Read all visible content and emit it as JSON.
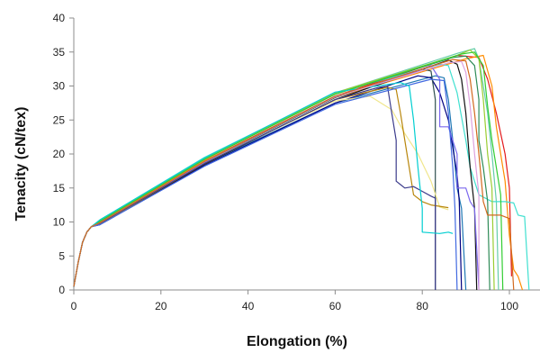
{
  "chart_data": {
    "type": "line",
    "title": "",
    "xlabel": "Elongation (%)",
    "ylabel": "Tenacity (cN/tex)",
    "xlim": [
      0,
      110
    ],
    "ylim": [
      0,
      40
    ],
    "xticks": [
      0,
      20,
      40,
      60,
      80,
      100
    ],
    "yticks": [
      0,
      5,
      10,
      15,
      20,
      25,
      30,
      35,
      40
    ],
    "grid": false,
    "legend": "none",
    "series": [
      {
        "color": "#e31a1c",
        "points": [
          [
            0,
            0.5
          ],
          [
            1,
            4
          ],
          [
            2,
            7
          ],
          [
            3,
            8.5
          ],
          [
            4,
            9.3
          ],
          [
            6,
            10
          ],
          [
            30,
            19
          ],
          [
            60,
            28.5
          ],
          [
            88,
            34.5
          ],
          [
            93,
            34.2
          ],
          [
            95,
            31
          ],
          [
            97,
            26
          ],
          [
            99,
            20
          ],
          [
            100,
            15
          ],
          [
            100.5,
            2
          ]
        ]
      },
      {
        "color": "#ff8c00",
        "points": [
          [
            0,
            0.5
          ],
          [
            1,
            4
          ],
          [
            2,
            7
          ],
          [
            3,
            8.5
          ],
          [
            4,
            9.3
          ],
          [
            6,
            10
          ],
          [
            30,
            19
          ],
          [
            60,
            28.3
          ],
          [
            90,
            34
          ],
          [
            94,
            34.5
          ],
          [
            96,
            30
          ],
          [
            97,
            24
          ],
          [
            98,
            20
          ],
          [
            99,
            16
          ],
          [
            100,
            8
          ],
          [
            101,
            3
          ],
          [
            102,
            2
          ],
          [
            103,
            0
          ]
        ]
      },
      {
        "color": "#66cdaa",
        "points": [
          [
            0,
            0.5
          ],
          [
            1,
            4
          ],
          [
            2,
            7
          ],
          [
            3,
            8.5
          ],
          [
            4,
            9.3
          ],
          [
            6,
            10.2
          ],
          [
            30,
            19.3
          ],
          [
            60,
            29
          ],
          [
            88,
            34.8
          ],
          [
            92,
            35.5
          ],
          [
            93,
            34
          ],
          [
            94,
            30
          ],
          [
            95,
            26
          ],
          [
            96,
            20
          ],
          [
            97,
            13
          ],
          [
            97.5,
            0
          ]
        ]
      },
      {
        "color": "#40e0d0",
        "points": [
          [
            0,
            0.5
          ],
          [
            1,
            4
          ],
          [
            2,
            7
          ],
          [
            3,
            8.5
          ],
          [
            4,
            9.3
          ],
          [
            6,
            10.3
          ],
          [
            30,
            19.5
          ],
          [
            60,
            29
          ],
          [
            84,
            33.2
          ],
          [
            86,
            33
          ],
          [
            88,
            29
          ],
          [
            90,
            22
          ],
          [
            91,
            18
          ],
          [
            93,
            14
          ],
          [
            96,
            13
          ],
          [
            99,
            13
          ],
          [
            101,
            12.8
          ],
          [
            102,
            11
          ],
          [
            103.5,
            10.8
          ],
          [
            104.5,
            0
          ]
        ]
      },
      {
        "color": "#1f78b4",
        "points": [
          [
            0,
            0.5
          ],
          [
            1,
            4
          ],
          [
            2,
            7
          ],
          [
            3,
            8.5
          ],
          [
            4,
            9.3
          ],
          [
            6,
            9.8
          ],
          [
            30,
            18.5
          ],
          [
            60,
            27.5
          ],
          [
            83,
            31.5
          ],
          [
            85,
            31.2
          ],
          [
            86,
            28
          ],
          [
            87,
            22
          ],
          [
            88,
            15
          ],
          [
            89,
            12
          ],
          [
            90,
            0
          ]
        ]
      },
      {
        "color": "#000080",
        "points": [
          [
            0,
            0.5
          ],
          [
            1,
            4
          ],
          [
            2,
            7
          ],
          [
            3,
            8.5
          ],
          [
            4,
            9.3
          ],
          [
            6,
            9.6
          ],
          [
            30,
            18.3
          ],
          [
            60,
            27.5
          ],
          [
            79,
            31.5
          ],
          [
            82,
            31.2
          ],
          [
            84,
            29
          ],
          [
            86,
            25
          ],
          [
            88,
            17
          ],
          [
            88.5,
            13
          ],
          [
            89,
            0
          ]
        ]
      },
      {
        "color": "#2f4f4f",
        "points": [
          [
            0,
            0.5
          ],
          [
            1,
            4
          ],
          [
            2,
            7
          ],
          [
            3,
            8.5
          ],
          [
            4,
            9.3
          ],
          [
            6,
            9.9
          ],
          [
            30,
            18.8
          ],
          [
            60,
            28.3
          ],
          [
            80,
            32.5
          ],
          [
            82,
            32.2
          ],
          [
            83,
            28
          ],
          [
            83,
            12
          ],
          [
            83,
            0
          ]
        ]
      },
      {
        "color": "#111111",
        "points": [
          [
            0,
            0.5
          ],
          [
            1,
            4
          ],
          [
            2,
            7
          ],
          [
            3,
            8.5
          ],
          [
            4,
            9.3
          ],
          [
            6,
            9.7
          ],
          [
            30,
            18.5
          ],
          [
            60,
            28
          ],
          [
            86,
            33.8
          ],
          [
            88,
            33.2
          ],
          [
            89,
            31
          ],
          [
            90,
            26
          ],
          [
            91,
            18
          ],
          [
            92,
            12
          ],
          [
            92.5,
            0
          ]
        ]
      },
      {
        "color": "#f0e68c",
        "points": [
          [
            0,
            0.5
          ],
          [
            1,
            4
          ],
          [
            2,
            7
          ],
          [
            3,
            8.5
          ],
          [
            4,
            9.3
          ],
          [
            6,
            9.7
          ],
          [
            30,
            18.7
          ],
          [
            60,
            27.8
          ],
          [
            68,
            28.5
          ],
          [
            73,
            26.5
          ],
          [
            76,
            23
          ],
          [
            79,
            20
          ],
          [
            82,
            16
          ],
          [
            84,
            12.2
          ],
          [
            86,
            11.8
          ]
        ]
      },
      {
        "color": "#b8860b",
        "points": [
          [
            0,
            0.5
          ],
          [
            1,
            4
          ],
          [
            2,
            7
          ],
          [
            3,
            8.5
          ],
          [
            4,
            9.3
          ],
          [
            6,
            9.7
          ],
          [
            30,
            18.6
          ],
          [
            60,
            28
          ],
          [
            72,
            29.8
          ],
          [
            74,
            29.5
          ],
          [
            75,
            26
          ],
          [
            76,
            22
          ],
          [
            77,
            18
          ],
          [
            78,
            14
          ],
          [
            80,
            13
          ],
          [
            82,
            12.5
          ],
          [
            84,
            12.3
          ],
          [
            86,
            12.1
          ]
        ]
      },
      {
        "color": "#7b68ee",
        "points": [
          [
            0,
            0.5
          ],
          [
            1,
            4
          ],
          [
            2,
            7
          ],
          [
            3,
            8.5
          ],
          [
            4,
            9.3
          ],
          [
            6,
            9.9
          ],
          [
            30,
            18.8
          ],
          [
            60,
            28.5
          ],
          [
            78,
            32
          ],
          [
            82,
            33
          ],
          [
            84,
            31
          ],
          [
            84,
            24
          ],
          [
            86,
            24
          ],
          [
            88,
            20
          ],
          [
            88,
            15
          ],
          [
            90,
            15
          ],
          [
            91,
            13
          ],
          [
            92,
            12
          ],
          [
            93,
            0
          ]
        ]
      },
      {
        "color": "#2e8b57",
        "points": [
          [
            0,
            0.5
          ],
          [
            1,
            4
          ],
          [
            2,
            7
          ],
          [
            3,
            8.5
          ],
          [
            4,
            9.3
          ],
          [
            6,
            10.1
          ],
          [
            30,
            19.2
          ],
          [
            60,
            28.8
          ],
          [
            87,
            34.2
          ],
          [
            90,
            34.4
          ],
          [
            92,
            33
          ],
          [
            93,
            28
          ],
          [
            93,
            22
          ],
          [
            94,
            18
          ],
          [
            95,
            13
          ],
          [
            95.5,
            0
          ]
        ]
      },
      {
        "color": "#9acd32",
        "points": [
          [
            0,
            0.5
          ],
          [
            1,
            4
          ],
          [
            2,
            7
          ],
          [
            3,
            8.5
          ],
          [
            4,
            9.3
          ],
          [
            6,
            10.2
          ],
          [
            30,
            19.3
          ],
          [
            60,
            29
          ],
          [
            88,
            34.5
          ],
          [
            91,
            35.3
          ],
          [
            93,
            34
          ],
          [
            94,
            28
          ],
          [
            95,
            20
          ],
          [
            96,
            15
          ],
          [
            96.5,
            0
          ]
        ]
      },
      {
        "color": "#32cd32",
        "points": [
          [
            0,
            0.5
          ],
          [
            1,
            4
          ],
          [
            2,
            7
          ],
          [
            3,
            8.5
          ],
          [
            4,
            9.3
          ],
          [
            6,
            10.1
          ],
          [
            30,
            19.2
          ],
          [
            60,
            28.8
          ],
          [
            89,
            34.7
          ],
          [
            92,
            35
          ],
          [
            94,
            33
          ],
          [
            95,
            27
          ],
          [
            96,
            22
          ],
          [
            97,
            18
          ],
          [
            98,
            14
          ],
          [
            98.5,
            0
          ]
        ]
      },
      {
        "color": "#3c3c8c",
        "points": [
          [
            0,
            0.5
          ],
          [
            1,
            4
          ],
          [
            2,
            7
          ],
          [
            3,
            8.5
          ],
          [
            4,
            9.3
          ],
          [
            6,
            9.8
          ],
          [
            30,
            18.6
          ],
          [
            60,
            28
          ],
          [
            70,
            29.8
          ],
          [
            72,
            30
          ],
          [
            73,
            26
          ],
          [
            74,
            22
          ],
          [
            74,
            16
          ],
          [
            75,
            15.5
          ],
          [
            76,
            15
          ],
          [
            78,
            15.2
          ],
          [
            80,
            14.5
          ],
          [
            82,
            13.8
          ],
          [
            83,
            13.5
          ],
          [
            83,
            0
          ]
        ]
      },
      {
        "color": "#4169e1",
        "points": [
          [
            0,
            0.5
          ],
          [
            1,
            4
          ],
          [
            2,
            7
          ],
          [
            3,
            8.5
          ],
          [
            4,
            9.3
          ],
          [
            6,
            9.6
          ],
          [
            30,
            18.2
          ],
          [
            60,
            27.3
          ],
          [
            82,
            31
          ],
          [
            85,
            30.8
          ],
          [
            86,
            26
          ],
          [
            87,
            18
          ],
          [
            87.5,
            12
          ],
          [
            88,
            0
          ]
        ]
      },
      {
        "color": "#00ced1",
        "points": [
          [
            0,
            0.5
          ],
          [
            1,
            4
          ],
          [
            2,
            7
          ],
          [
            3,
            8.5
          ],
          [
            4,
            9.3
          ],
          [
            6,
            10.3
          ],
          [
            30,
            19.4
          ],
          [
            60,
            29.1
          ],
          [
            75,
            30.5
          ],
          [
            77,
            30
          ],
          [
            78,
            25
          ],
          [
            79,
            18
          ],
          [
            80,
            12
          ],
          [
            80,
            8.5
          ],
          [
            84,
            8.3
          ],
          [
            86,
            8.5
          ],
          [
            87,
            8.3
          ]
        ]
      },
      {
        "color": "#dda0dd",
        "points": [
          [
            0,
            0.5
          ],
          [
            1,
            4
          ],
          [
            2,
            7
          ],
          [
            3,
            8.5
          ],
          [
            4,
            9.3
          ],
          [
            6,
            9.9
          ],
          [
            30,
            18.9
          ],
          [
            60,
            28.4
          ],
          [
            86,
            33.4
          ],
          [
            89,
            33.6
          ],
          [
            90,
            32
          ],
          [
            91,
            27
          ],
          [
            92,
            20
          ],
          [
            93,
            14
          ],
          [
            93,
            0
          ]
        ]
      },
      {
        "color": "#d2691e",
        "points": [
          [
            0,
            0.5
          ],
          [
            1,
            4
          ],
          [
            2,
            7
          ],
          [
            3,
            8.5
          ],
          [
            4,
            9.3
          ],
          [
            6,
            9.9
          ],
          [
            30,
            18.9
          ],
          [
            60,
            28.5
          ],
          [
            87,
            33.9
          ],
          [
            90,
            33.7
          ],
          [
            91,
            31
          ],
          [
            92,
            26
          ],
          [
            93,
            20
          ],
          [
            94,
            13
          ],
          [
            95,
            11
          ],
          [
            98,
            11
          ],
          [
            100,
            10.5
          ],
          [
            101,
            0
          ]
        ]
      }
    ]
  }
}
